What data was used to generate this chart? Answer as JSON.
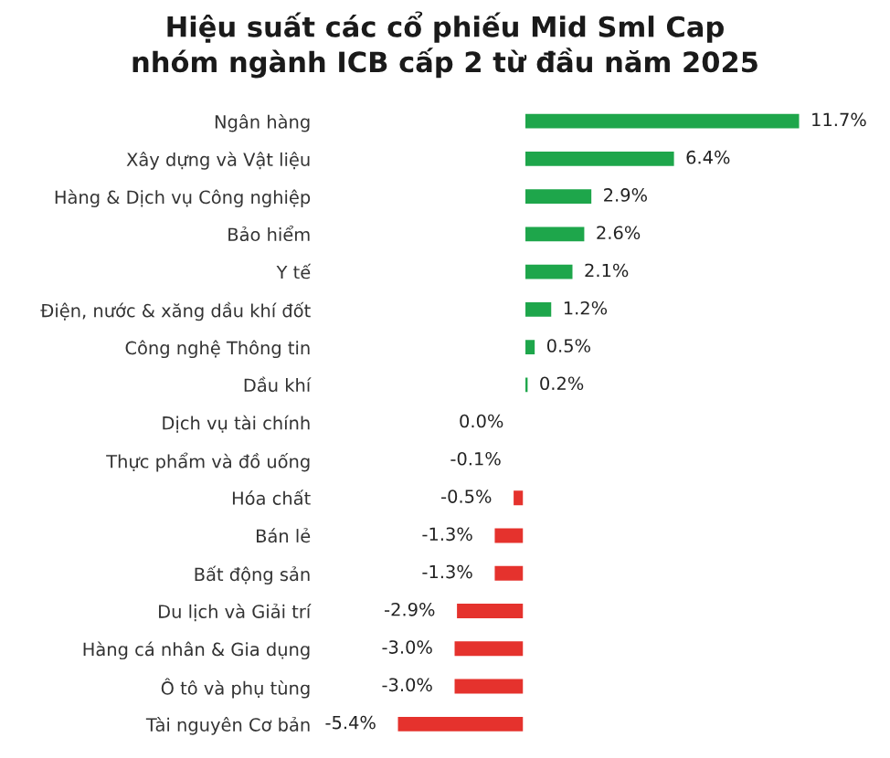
{
  "chart_data": {
    "type": "bar",
    "orientation": "horizontal",
    "title": "Hiệu suất các cổ phiếu Mid Sml Cap\nnhóm ngành ICB cấp 2 từ đầu năm 2025",
    "categories": [
      "Ngân hàng",
      "Xây dựng và Vật liệu",
      "Hàng & Dịch vụ Công nghiệp",
      "Bảo hiểm",
      "Y tế",
      "Điện, nước & xăng dầu khí đốt",
      "Công nghệ Thông tin",
      "Dầu khí",
      "Dịch vụ tài chính",
      "Thực phẩm và đồ uống",
      "Hóa chất",
      "Bán lẻ",
      "Bất động sản",
      "Du lịch và Giải trí",
      "Hàng cá nhân & Gia dụng",
      "Ô tô và phụ tùng",
      "Tài nguyên Cơ bản"
    ],
    "values": [
      11.7,
      6.4,
      2.9,
      2.6,
      2.1,
      1.2,
      0.5,
      0.2,
      0.0,
      -0.1,
      -0.5,
      -1.3,
      -1.3,
      -2.9,
      -3.0,
      -3.0,
      -5.4
    ],
    "value_labels": [
      "11.7%",
      "6.4%",
      "2.9%",
      "2.6%",
      "2.1%",
      "1.2%",
      "0.5%",
      "0.2%",
      "0.0%",
      "-0.1%",
      "-0.5%",
      "-1.3%",
      "-1.3%",
      "-2.9%",
      "-3.0%",
      "-3.0%",
      "-5.4%"
    ],
    "colors": [
      "#1ea64b",
      "#1ea64b",
      "#1ea64b",
      "#1ea64b",
      "#1ea64b",
      "#1ea64b",
      "#1ea64b",
      "#1ea64b",
      null,
      "#e5322d",
      "#e5322d",
      "#e5322d",
      "#e5322d",
      "#e5322d",
      "#e5322d",
      "#e5322d",
      "#e5322d"
    ],
    "tick_labels": "y",
    "grid": false,
    "legend": false
  }
}
